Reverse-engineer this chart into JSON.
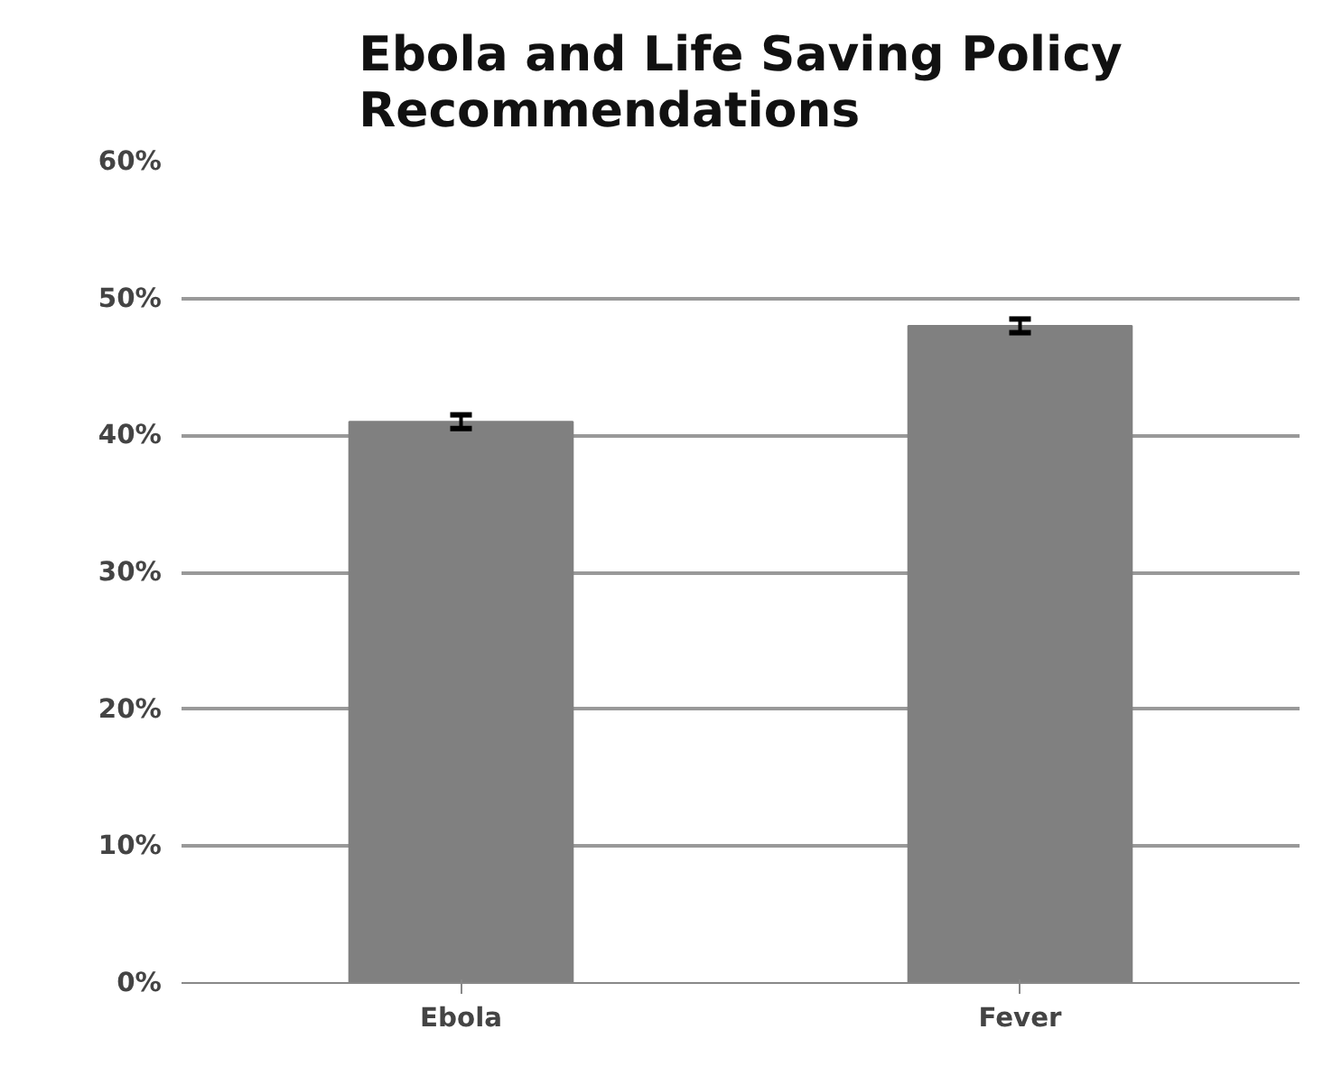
{
  "chart_data": {
    "type": "bar",
    "title": "Ebola and Life Saving Policy Recommendations",
    "categories": [
      "Ebola",
      "Fever"
    ],
    "values": [
      0.41,
      0.48
    ],
    "errors": [
      0.005,
      0.005
    ],
    "color": "#808080",
    "ylim": [
      0,
      0.6
    ],
    "yticks": [
      {
        "value": 0,
        "label": "0%"
      },
      {
        "value": 0.1,
        "label": "10%"
      },
      {
        "value": 0.2,
        "label": "20%"
      },
      {
        "value": 0.3,
        "label": "30%"
      },
      {
        "value": 0.4,
        "label": "40%"
      },
      {
        "value": 0.5,
        "label": "50%"
      },
      {
        "value": 0.6,
        "label": "60%"
      }
    ],
    "grid": "y"
  }
}
